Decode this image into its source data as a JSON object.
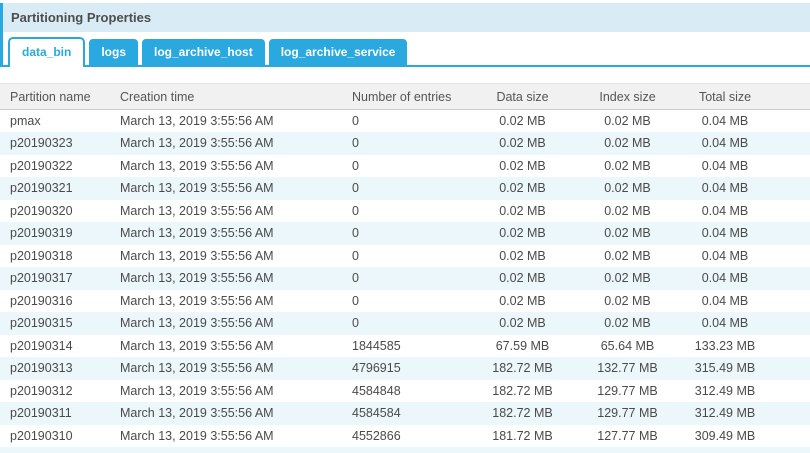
{
  "panel": {
    "title": "Partitioning Properties"
  },
  "tabs": [
    {
      "label": "data_bin",
      "active": true
    },
    {
      "label": "logs",
      "active": false
    },
    {
      "label": "log_archive_host",
      "active": false
    },
    {
      "label": "log_archive_service",
      "active": false
    }
  ],
  "table": {
    "columns": [
      "Partition name",
      "Creation time",
      "Number of entries",
      "Data size",
      "Index size",
      "Total size"
    ],
    "rows": [
      [
        "pmax",
        "March 13, 2019 3:55:56 AM",
        "0",
        "0.02 MB",
        "0.02 MB",
        "0.04 MB"
      ],
      [
        "p20190323",
        "March 13, 2019 3:55:56 AM",
        "0",
        "0.02 MB",
        "0.02 MB",
        "0.04 MB"
      ],
      [
        "p20190322",
        "March 13, 2019 3:55:56 AM",
        "0",
        "0.02 MB",
        "0.02 MB",
        "0.04 MB"
      ],
      [
        "p20190321",
        "March 13, 2019 3:55:56 AM",
        "0",
        "0.02 MB",
        "0.02 MB",
        "0.04 MB"
      ],
      [
        "p20190320",
        "March 13, 2019 3:55:56 AM",
        "0",
        "0.02 MB",
        "0.02 MB",
        "0.04 MB"
      ],
      [
        "p20190319",
        "March 13, 2019 3:55:56 AM",
        "0",
        "0.02 MB",
        "0.02 MB",
        "0.04 MB"
      ],
      [
        "p20190318",
        "March 13, 2019 3:55:56 AM",
        "0",
        "0.02 MB",
        "0.02 MB",
        "0.04 MB"
      ],
      [
        "p20190317",
        "March 13, 2019 3:55:56 AM",
        "0",
        "0.02 MB",
        "0.02 MB",
        "0.04 MB"
      ],
      [
        "p20190316",
        "March 13, 2019 3:55:56 AM",
        "0",
        "0.02 MB",
        "0.02 MB",
        "0.04 MB"
      ],
      [
        "p20190315",
        "March 13, 2019 3:55:56 AM",
        "0",
        "0.02 MB",
        "0.02 MB",
        "0.04 MB"
      ],
      [
        "p20190314",
        "March 13, 2019 3:55:56 AM",
        "1844585",
        "67.59 MB",
        "65.64 MB",
        "133.23 MB"
      ],
      [
        "p20190313",
        "March 13, 2019 3:55:56 AM",
        "4796915",
        "182.72 MB",
        "132.77 MB",
        "315.49 MB"
      ],
      [
        "p20190312",
        "March 13, 2019 3:55:56 AM",
        "4584848",
        "182.72 MB",
        "129.77 MB",
        "312.49 MB"
      ],
      [
        "p20190311",
        "March 13, 2019 3:55:56 AM",
        "4584584",
        "182.72 MB",
        "129.77 MB",
        "312.49 MB"
      ],
      [
        "p20190310",
        "March 13, 2019 3:55:56 AM",
        "4552866",
        "181.72 MB",
        "127.77 MB",
        "309.49 MB"
      ]
    ]
  },
  "colors": {
    "accent_blue": "#29a9df",
    "titlebar_bg": "#d9ecf6",
    "row_alt_bg": "#ecf7fb",
    "table_header_bg": "#f1f1f1",
    "text_dark": "#4a4a4a"
  }
}
